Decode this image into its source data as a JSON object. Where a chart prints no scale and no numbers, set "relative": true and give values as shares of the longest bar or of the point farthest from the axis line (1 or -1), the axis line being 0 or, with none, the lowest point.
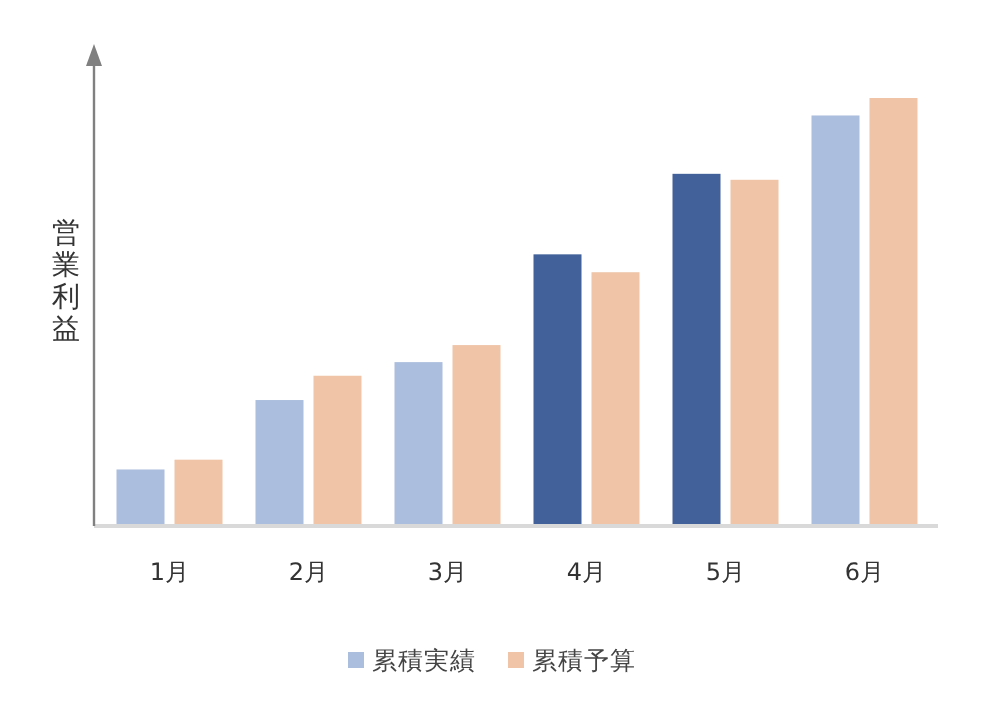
{
  "chart_data": {
    "type": "bar",
    "ylabel": "営業利益",
    "relative": true,
    "legend": "bottom",
    "categories": [
      "1月",
      "2月",
      "3月",
      "4月",
      "5月",
      "6月"
    ],
    "series": [
      {
        "name": "累積実績",
        "color": "#abbedd",
        "colors": [
          "#abbedd",
          "#abbedd",
          "#abbedd",
          "#42619a",
          "#42619a",
          "#abbedd"
        ],
        "values": [
          0.128,
          0.291,
          0.38,
          0.633,
          0.822,
          0.959
        ]
      },
      {
        "name": "累積予算",
        "color": "#efc4a7",
        "values": [
          0.151,
          0.348,
          0.42,
          0.591,
          0.808,
          1
        ]
      }
    ]
  }
}
